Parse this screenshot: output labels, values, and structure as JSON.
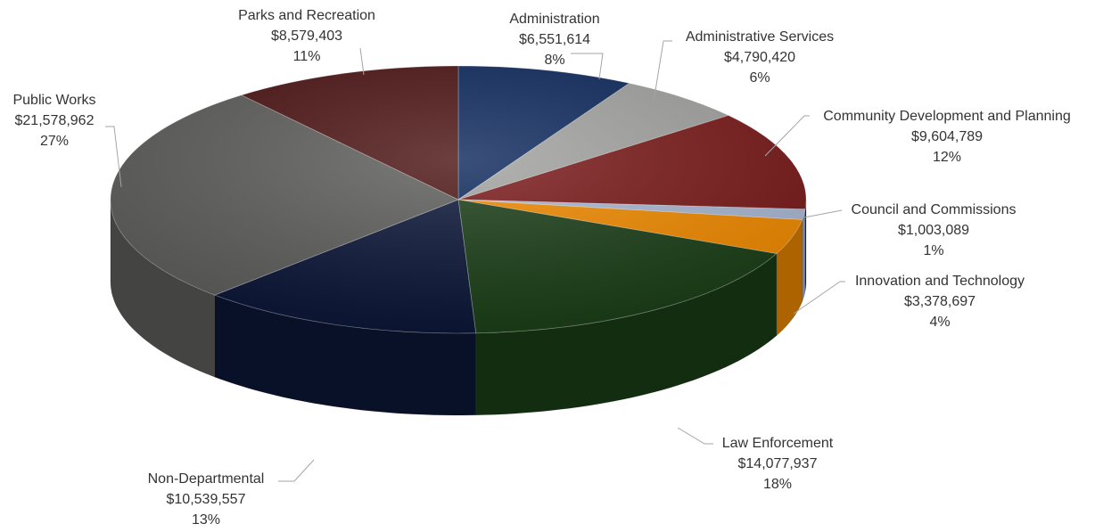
{
  "chart_data": {
    "type": "pie",
    "style": "3d",
    "slices": [
      {
        "name": "Administration",
        "value_label": "$6,551,614",
        "value": 6551614,
        "percent_label": "8%",
        "color": "#0f2a5e"
      },
      {
        "name": "Administrative Services",
        "value_label": "$4,790,420",
        "value": 4790420,
        "percent_label": "6%",
        "color": "#a3a3a1"
      },
      {
        "name": "Community Development and Planning",
        "value_label": "$9,604,789",
        "value": 9604789,
        "percent_label": "12%",
        "color": "#7a1a1a"
      },
      {
        "name": "Council and Commissions",
        "value_label": "$1,003,089",
        "value": 1003089,
        "percent_label": "1%",
        "color": "#a9b8d4"
      },
      {
        "name": "Innovation and Technology",
        "value_label": "$3,378,697",
        "value": 3378697,
        "percent_label": "4%",
        "color": "#f08a00"
      },
      {
        "name": "Law Enforcement",
        "value_label": "$14,077,937",
        "value": 14077937,
        "percent_label": "18%",
        "color": "#1b3f18"
      },
      {
        "name": "Non-Departmental",
        "value_label": "$10,539,557",
        "value": 10539557,
        "percent_label": "13%",
        "color": "#0c1738"
      },
      {
        "name": "Public Works",
        "value_label": "$21,578,962",
        "value": 21578962,
        "percent_label": "27%",
        "color": "#5e5f5c"
      },
      {
        "name": "Parks and Recreation",
        "value_label": "$8,579,403",
        "value": 8579403,
        "percent_label": "11%",
        "color": "#4e1515"
      }
    ]
  }
}
